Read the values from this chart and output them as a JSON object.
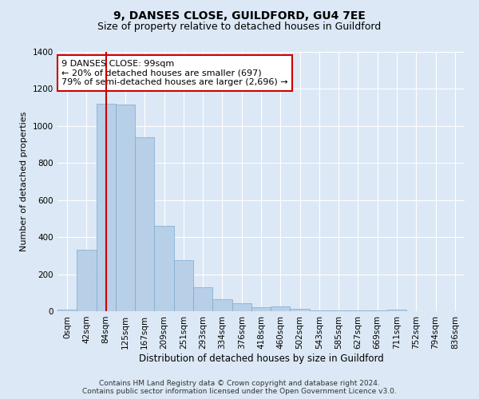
{
  "title": "9, DANSES CLOSE, GUILDFORD, GU4 7EE",
  "subtitle": "Size of property relative to detached houses in Guildford",
  "xlabel": "Distribution of detached houses by size in Guildford",
  "ylabel": "Number of detached properties",
  "categories": [
    "0sqm",
    "42sqm",
    "84sqm",
    "125sqm",
    "167sqm",
    "209sqm",
    "251sqm",
    "293sqm",
    "334sqm",
    "376sqm",
    "418sqm",
    "460sqm",
    "502sqm",
    "543sqm",
    "585sqm",
    "627sqm",
    "669sqm",
    "711sqm",
    "752sqm",
    "794sqm",
    "836sqm"
  ],
  "bar_values": [
    10,
    330,
    1120,
    1115,
    940,
    460,
    275,
    130,
    65,
    45,
    20,
    25,
    15,
    5,
    5,
    5,
    3,
    10,
    0,
    0,
    0
  ],
  "bar_color": "#b8cfe8",
  "bar_edgecolor": "#7aaad0",
  "vline_x_index": 2,
  "vline_color": "#cc0000",
  "annotation_line1": "9 DANSES CLOSE: 99sqm",
  "annotation_line2": "← 20% of detached houses are smaller (697)",
  "annotation_line3": "79% of semi-detached houses are larger (2,696) →",
  "annotation_box_color": "#ffffff",
  "annotation_box_edgecolor": "#cc0000",
  "ylim": [
    0,
    1400
  ],
  "yticks": [
    0,
    200,
    400,
    600,
    800,
    1000,
    1200,
    1400
  ],
  "background_color": "#dce8f5",
  "plot_bg_color": "#dce8f5",
  "footer_line1": "Contains HM Land Registry data © Crown copyright and database right 2024.",
  "footer_line2": "Contains public sector information licensed under the Open Government Licence v3.0.",
  "title_fontsize": 10,
  "subtitle_fontsize": 9,
  "xlabel_fontsize": 8.5,
  "ylabel_fontsize": 8,
  "tick_fontsize": 7.5,
  "annotation_fontsize": 8,
  "footer_fontsize": 6.5
}
